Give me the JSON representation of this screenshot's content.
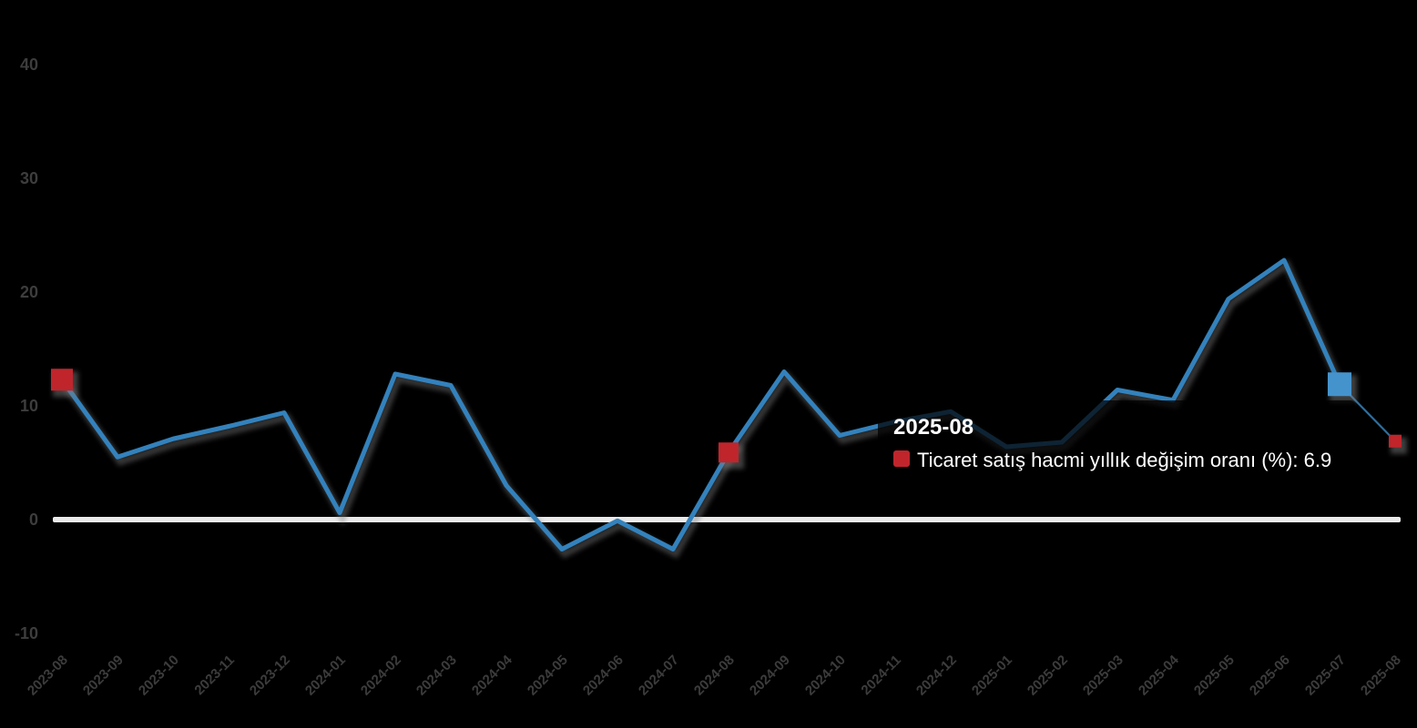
{
  "chart_data": {
    "type": "line",
    "title": "",
    "xlabel": "",
    "ylabel": "",
    "grid": false,
    "x_label_rotation": 45,
    "y_ticks": [
      40,
      30,
      20,
      10,
      0,
      -10
    ],
    "x": [
      "2023-08",
      "2023-09",
      "2023-10",
      "2023-11",
      "2023-12",
      "2024-01",
      "2024-02",
      "2024-03",
      "2024-04",
      "2024-05",
      "2024-06",
      "2024-07",
      "2024-08",
      "2024-09",
      "2024-10",
      "2024-11",
      "2024-12",
      "2025-01",
      "2025-02",
      "2025-03",
      "2025-04",
      "2025-05",
      "2025-06",
      "2025-07",
      "2025-08"
    ],
    "series": [
      {
        "name": "Ticaret satış hacmi yıllık değişim oranı (%)",
        "values": [
          12.3,
          5.5,
          7.1,
          8.2,
          9.4,
          0.6,
          12.8,
          11.8,
          3.0,
          -2.6,
          -0.1,
          -2.6,
          5.9,
          13.0,
          7.4,
          8.6,
          9.5,
          6.4,
          6.8,
          11.4,
          10.5,
          19.4,
          22.8,
          11.9,
          6.9
        ]
      }
    ],
    "highlight_markers": [
      {
        "x": "2023-08",
        "index": 0,
        "color": "#c0252c",
        "size": 24
      },
      {
        "x": "2024-08",
        "index": 12,
        "color": "#c0252c",
        "size": 22
      },
      {
        "x": "2025-07",
        "index": 23,
        "color": "#4593cc",
        "size": 26
      },
      {
        "x": "2025-08",
        "index": 24,
        "color": "#c0252c",
        "size": 14
      }
    ]
  },
  "tooltip": {
    "title": "2025-08",
    "series_label": "Ticaret satış hacmi yıllık değişim oranı (%)",
    "value": "6.9",
    "text": "Ticaret satış hacmi yıllık değişim oranı (%): 6.9"
  },
  "colors": {
    "background": "#000000",
    "line": "#3382bd",
    "line_last_segment": "#2e6f9e",
    "zero_line": "#ebebeb",
    "axis_label": "#3c3c3c",
    "marker_red": "#c0252c",
    "marker_blue": "#4593cc",
    "tooltip_bg": "rgba(0,0,0,0.72)",
    "tooltip_text": "#ffffff"
  }
}
